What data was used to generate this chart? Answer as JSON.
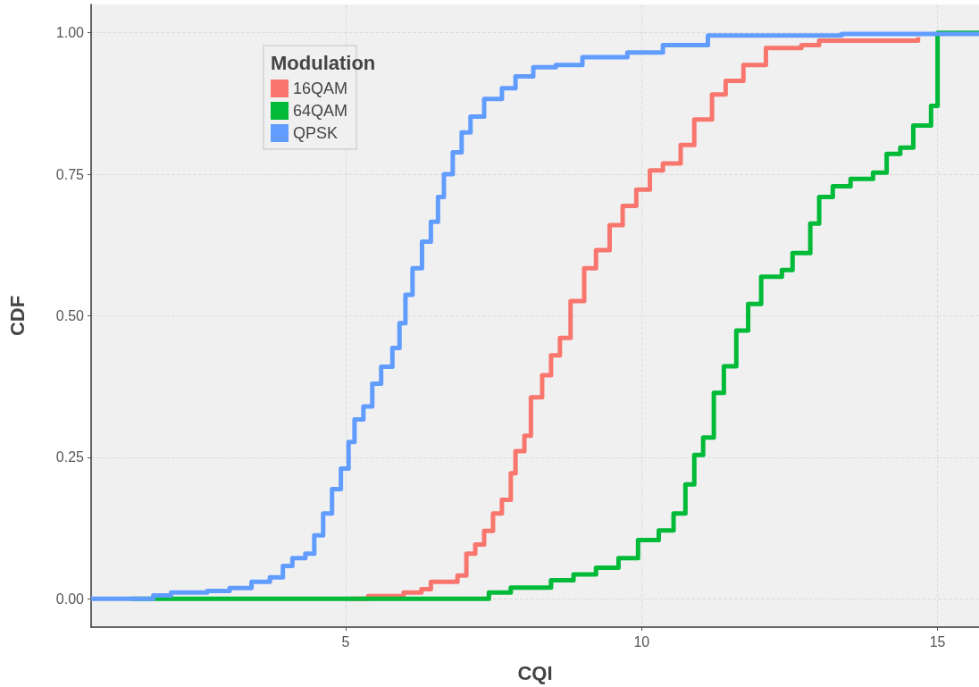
{
  "chart_data": {
    "type": "step",
    "xlabel": "CQI",
    "ylabel": "CDF",
    "legend_title": "Modulation",
    "legend": "top left",
    "grid": true,
    "line_style": "solid",
    "marker": "none",
    "xlim": [
      0.7,
      15.7
    ],
    "ylim": [
      -0.05,
      1.05
    ],
    "xticks": [
      5,
      10,
      15
    ],
    "yticks": [
      {
        "value": 0,
        "label": "0.00"
      },
      {
        "value": 0.25,
        "label": "0.25"
      },
      {
        "value": 0.5,
        "label": "0.50"
      },
      {
        "value": 0.75,
        "label": "0.75"
      },
      {
        "value": 1,
        "label": "1.00"
      }
    ],
    "series": [
      {
        "name": "16QAM",
        "color": "#f8766d",
        "x": [
          5.08,
          5.38,
          5.98,
          6.28,
          6.44,
          6.89,
          7.04,
          7.04,
          7.19,
          7.34,
          7.49,
          7.64,
          7.79,
          7.87,
          8.02,
          8.13,
          8.32,
          8.47,
          8.62,
          8.8,
          9.03,
          9.23,
          9.46,
          9.68,
          9.91,
          10.14,
          10.36,
          10.66,
          10.89,
          11.19,
          11.42,
          11.72,
          12.1,
          12.7,
          13.0,
          14.67
        ],
        "values": [
          0,
          0.005,
          0.011,
          0.017,
          0.03,
          0.041,
          0.049,
          0.08,
          0.096,
          0.12,
          0.151,
          0.175,
          0.222,
          0.261,
          0.288,
          0.356,
          0.395,
          0.43,
          0.461,
          0.526,
          0.584,
          0.616,
          0.66,
          0.694,
          0.723,
          0.757,
          0.769,
          0.802,
          0.847,
          0.891,
          0.915,
          0.943,
          0.973,
          0.978,
          0.986,
          0.992
        ]
      },
      {
        "name": "64QAM",
        "color": "#00ba38",
        "x": [
          1.37,
          7.34,
          7.42,
          7.79,
          8.47,
          8.85,
          9.23,
          9.61,
          9.94,
          10.29,
          10.54,
          10.74,
          10.89,
          11.04,
          11.22,
          11.39,
          11.6,
          11.8,
          12.02,
          12.37,
          12.55,
          12.85,
          13.0,
          13.23,
          13.53,
          13.91,
          14.14,
          14.37,
          14.59,
          14.89,
          15.0,
          15.0,
          15.7
        ],
        "values": [
          0,
          0,
          0.011,
          0.02,
          0.033,
          0.043,
          0.055,
          0.072,
          0.104,
          0.121,
          0.151,
          0.202,
          0.254,
          0.285,
          0.364,
          0.411,
          0.474,
          0.521,
          0.569,
          0.581,
          0.611,
          0.663,
          0.71,
          0.729,
          0.742,
          0.753,
          0.786,
          0.797,
          0.836,
          0.871,
          0.9,
          1.0,
          1.0
        ]
      },
      {
        "name": "QPSK",
        "color": "#619cff",
        "x": [
          0.7,
          1.37,
          1.75,
          2.05,
          2.66,
          3.04,
          3.41,
          3.72,
          3.94,
          4.1,
          4.32,
          4.47,
          4.62,
          4.77,
          4.92,
          5.05,
          5.15,
          5.3,
          5.45,
          5.6,
          5.79,
          5.91,
          6.01,
          6.13,
          6.29,
          6.44,
          6.56,
          6.66,
          6.81,
          6.96,
          7.11,
          7.34,
          7.64,
          7.87,
          8.17,
          8.55,
          9.0,
          9.76,
          10.36,
          11.12,
          13.38,
          15.7
        ],
        "values": [
          0,
          0,
          0.006,
          0.011,
          0.014,
          0.019,
          0.03,
          0.038,
          0.058,
          0.072,
          0.08,
          0.112,
          0.151,
          0.194,
          0.23,
          0.277,
          0.317,
          0.34,
          0.38,
          0.41,
          0.443,
          0.487,
          0.537,
          0.584,
          0.631,
          0.666,
          0.71,
          0.75,
          0.789,
          0.824,
          0.852,
          0.883,
          0.902,
          0.923,
          0.939,
          0.943,
          0.957,
          0.965,
          0.978,
          0.995,
          0.998,
          1.0
        ]
      }
    ]
  }
}
